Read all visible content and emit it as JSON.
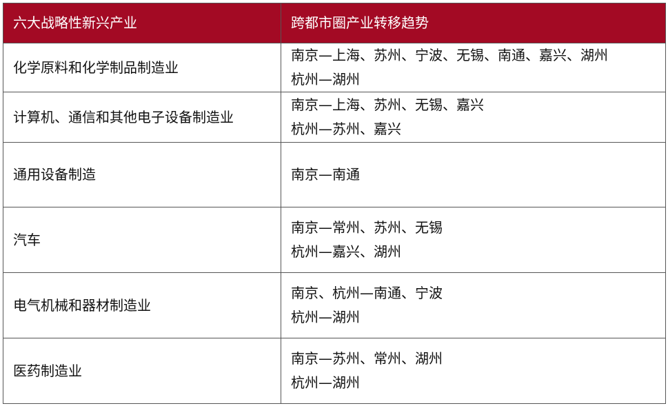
{
  "header": {
    "col1": "六大战略性新兴产业",
    "col2": "跨都市圈产业转移趋势",
    "color": "#a30a24"
  },
  "rows": [
    {
      "industry": "化学原料和化学制品制造业",
      "trends": [
        "南京—上海、苏州、宁波、无锡、南通、嘉兴、湖州",
        "杭州—湖州"
      ]
    },
    {
      "industry": "计算机、通信和其他电子设备制造业",
      "trends": [
        "南京—上海、苏州、无锡、嘉兴",
        "杭州—苏州、嘉兴"
      ]
    },
    {
      "industry": "通用设备制造",
      "trends": [
        "南京—南通"
      ]
    },
    {
      "industry": "汽车",
      "trends": [
        "南京—常州、苏州、无锡",
        "杭州—嘉兴、湖州"
      ]
    },
    {
      "industry": "电气机械和器材制造业",
      "trends": [
        "南京、杭州—南通、宁波",
        "杭州—湖州"
      ]
    },
    {
      "industry": "医药制造业",
      "trends": [
        "南京—苏州、常州、湖州",
        "杭州—湖州"
      ]
    }
  ]
}
